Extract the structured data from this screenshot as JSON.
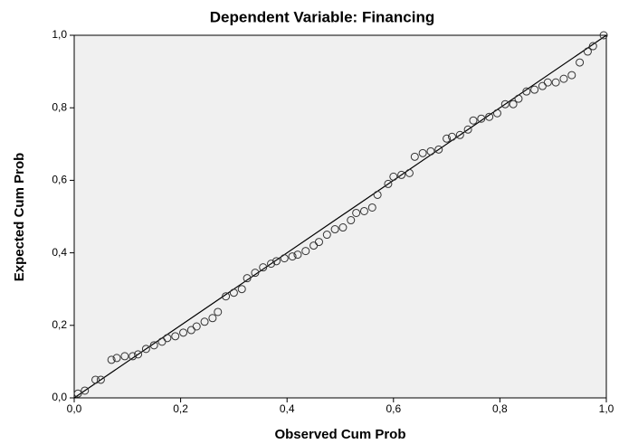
{
  "chart_data": {
    "type": "scatter",
    "title": "Dependent Variable: Financing",
    "x_label": "Observed Cum Prob",
    "y_label": "Expected Cum Prob",
    "xlim": [
      0,
      1
    ],
    "ylim": [
      0,
      1
    ],
    "xticks": [
      {
        "value": 0,
        "label": "0,0"
      },
      {
        "value": 0.2,
        "label": "0,2"
      },
      {
        "value": 0.4,
        "label": "0,4"
      },
      {
        "value": 0.6,
        "label": "0,6"
      },
      {
        "value": 0.8,
        "label": "0,8"
      },
      {
        "value": 1,
        "label": "1,0"
      }
    ],
    "yticks": [
      {
        "value": 0,
        "label": "0,0"
      },
      {
        "value": 0.2,
        "label": "0,2"
      },
      {
        "value": 0.4,
        "label": "0,4"
      },
      {
        "value": 0.6,
        "label": "0,6"
      },
      {
        "value": 0.8,
        "label": "0,8"
      },
      {
        "value": 1,
        "label": "1,0"
      }
    ],
    "color": "#333333",
    "x": [
      0.007,
      0.02,
      0.04,
      0.05,
      0.07,
      0.08,
      0.095,
      0.11,
      0.12,
      0.135,
      0.15,
      0.165,
      0.175,
      0.19,
      0.205,
      0.22,
      0.23,
      0.245,
      0.26,
      0.27,
      0.285,
      0.3,
      0.315,
      0.325,
      0.34,
      0.355,
      0.37,
      0.38,
      0.395,
      0.41,
      0.42,
      0.435,
      0.45,
      0.46,
      0.475,
      0.49,
      0.505,
      0.52,
      0.53,
      0.545,
      0.56,
      0.57,
      0.59,
      0.6,
      0.615,
      0.63,
      0.64,
      0.655,
      0.67,
      0.685,
      0.7,
      0.71,
      0.725,
      0.74,
      0.75,
      0.765,
      0.78,
      0.795,
      0.81,
      0.825,
      0.835,
      0.85,
      0.865,
      0.88,
      0.89,
      0.905,
      0.92,
      0.935,
      0.95,
      0.965,
      0.975,
      0.995
    ],
    "values": [
      0.012,
      0.02,
      0.05,
      0.05,
      0.105,
      0.11,
      0.115,
      0.115,
      0.12,
      0.135,
      0.145,
      0.155,
      0.165,
      0.17,
      0.18,
      0.187,
      0.197,
      0.21,
      0.22,
      0.237,
      0.28,
      0.29,
      0.3,
      0.33,
      0.345,
      0.36,
      0.37,
      0.377,
      0.385,
      0.39,
      0.395,
      0.405,
      0.42,
      0.43,
      0.45,
      0.465,
      0.47,
      0.49,
      0.51,
      0.515,
      0.525,
      0.56,
      0.59,
      0.61,
      0.615,
      0.62,
      0.665,
      0.675,
      0.68,
      0.685,
      0.715,
      0.72,
      0.725,
      0.74,
      0.765,
      0.77,
      0.775,
      0.785,
      0.81,
      0.81,
      0.825,
      0.845,
      0.85,
      0.86,
      0.87,
      0.87,
      0.88,
      0.89,
      0.925,
      0.955,
      0.97,
      1.0
    ]
  }
}
